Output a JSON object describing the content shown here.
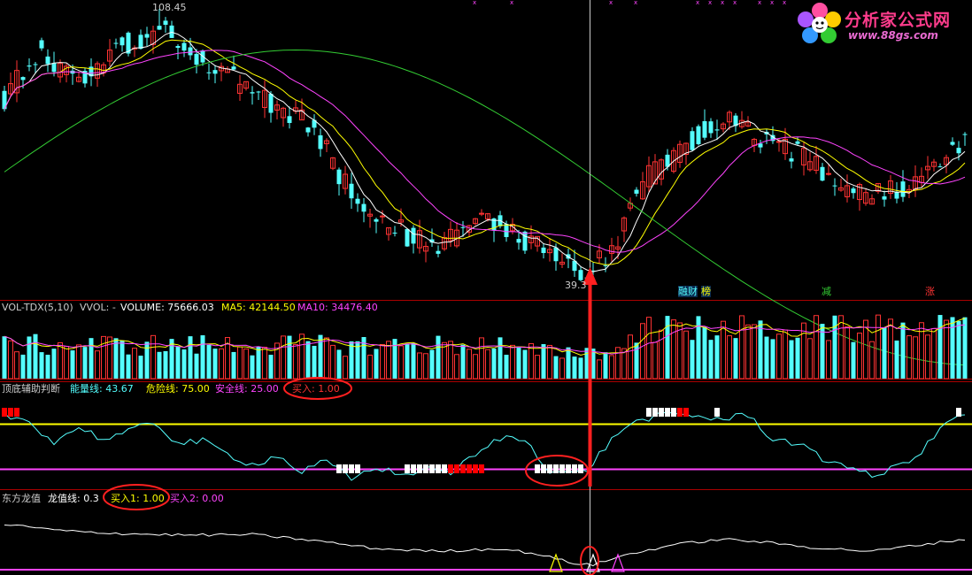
{
  "logo": {
    "text": "分析家公式网",
    "url_text": "www.88gs.com"
  },
  "colors": {
    "up": "#ff3333",
    "down": "#54ffff",
    "ma5": "#ffffff",
    "ma10": "#ffff00",
    "ma20": "#ff44ff",
    "ma60": "#33cc33",
    "energy": "#54ffff",
    "danger": "#ffff00",
    "safe": "#ff44ff",
    "dragon": "#ffffff",
    "signal_red": "#ff0000",
    "signal_white": "#ffffff"
  },
  "price_panel": {
    "high_label": "108.45",
    "low_label": "39.3",
    "events": [
      {
        "text": "融财",
        "color": "#54ffff"
      },
      {
        "text": "榜",
        "color": "#ffff00"
      },
      {
        "text": "减",
        "color": "#33cc33"
      },
      {
        "text": "涨",
        "color": "#ff3333"
      }
    ]
  },
  "volume_panel": {
    "name": "VOL-TDX(5,10)",
    "vvol": "VVOL: -",
    "volume": "VOLUME: 75666.03",
    "ma5": "MA5: 42144.50",
    "ma10": "MA10: 34476.40"
  },
  "judge_panel": {
    "name": "顶底辅助判断",
    "energy": "能量线: 43.67",
    "danger": "危险线: 75.00",
    "safe": "安全线: 25.00",
    "buy": "买入: 1.00"
  },
  "dragon_panel": {
    "name": "东方龙值",
    "dragon": "龙值线: 0.3",
    "buy1": "买入1: 1.00",
    "buy2": "买入2: 0.00"
  },
  "chart_data": {
    "type": "candlestick",
    "price_range": [
      39.3,
      108.45
    ],
    "high": 108.45,
    "low": 39.3,
    "volume_ma5": 42144.5,
    "volume_ma10": 34476.4,
    "last_volume": 75666.03,
    "energy_line": 43.67,
    "danger_line": 75.0,
    "safe_line": 25.0,
    "buy": 1.0,
    "dragon_line": 0.3,
    "buy1": 1.0,
    "buy2": 0.0
  }
}
